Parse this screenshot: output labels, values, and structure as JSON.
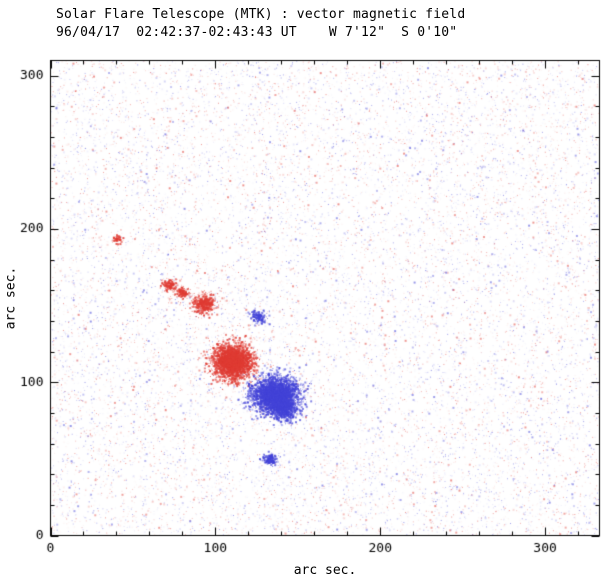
{
  "chart_data": {
    "type": "scatter",
    "title": "Solar Flare Telescope (MTK) : vector magnetic field",
    "subtitle": "96/04/17  02:42:37-02:43:43 UT    W 7'12\"  S 0'10\"",
    "xlabel": "arc sec.",
    "ylabel": "arc sec.",
    "xlim": [
      0,
      333
    ],
    "ylim": [
      0,
      310
    ],
    "x_ticks": [
      0,
      100,
      200,
      300
    ],
    "y_ticks": [
      0,
      100,
      200,
      300
    ],
    "minor_tick_interval": 20,
    "grid": false,
    "legend": "none",
    "colors": {
      "positive_polarity": "#e03c34",
      "negative_polarity": "#4444d8",
      "axis": "#000000",
      "background": "#ffffff"
    },
    "noise": {
      "seed": 1996,
      "count_positive": 8000,
      "count_negative": 8000
    },
    "features": [
      {
        "name": "main-positive-sunspot",
        "polarity": "positive",
        "x": 110,
        "y": 114,
        "sx": 6.0,
        "sy": 5.5,
        "count": 2600
      },
      {
        "name": "main-negative-sunspot",
        "polarity": "negative",
        "x": 136,
        "y": 92,
        "sx": 7.0,
        "sy": 6.0,
        "count": 3000
      },
      {
        "name": "negative-tail",
        "polarity": "negative",
        "x": 141,
        "y": 83,
        "sx": 3.5,
        "sy": 4.0,
        "count": 500
      },
      {
        "name": "plage-positive-1",
        "polarity": "positive",
        "x": 72,
        "y": 164,
        "sx": 2.2,
        "sy": 1.8,
        "count": 160
      },
      {
        "name": "plage-positive-2",
        "polarity": "positive",
        "x": 80,
        "y": 159,
        "sx": 2.0,
        "sy": 1.6,
        "count": 110
      },
      {
        "name": "plage-positive-3",
        "polarity": "positive",
        "x": 93,
        "y": 152,
        "sx": 3.5,
        "sy": 3.0,
        "count": 430
      },
      {
        "name": "faint-negative-patch",
        "polarity": "negative",
        "x": 126,
        "y": 143,
        "sx": 2.8,
        "sy": 2.2,
        "count": 140
      },
      {
        "name": "small-negative-spot",
        "polarity": "negative",
        "x": 133,
        "y": 50,
        "sx": 2.2,
        "sy": 1.8,
        "count": 180
      },
      {
        "name": "tiny-positive-speck",
        "polarity": "positive",
        "x": 40,
        "y": 194,
        "sx": 1.4,
        "sy": 1.2,
        "count": 45
      }
    ]
  }
}
